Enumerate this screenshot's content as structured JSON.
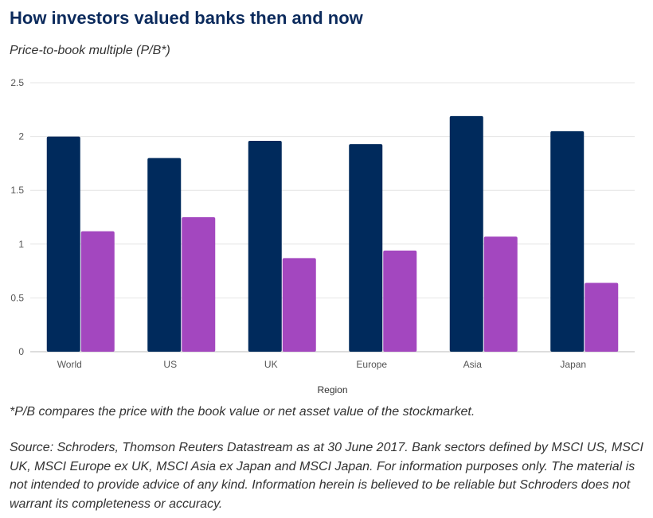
{
  "header": {
    "title": "How investors valued banks then and now",
    "subtitle": "Price-to-book multiple (P/B*)"
  },
  "chart_data": {
    "type": "bar",
    "categories": [
      "World",
      "US",
      "UK",
      "Europe",
      "Asia",
      "Japan"
    ],
    "series": [
      {
        "values": [
          2.0,
          1.8,
          1.96,
          1.93,
          2.19,
          2.05
        ],
        "color": "#002a5c"
      },
      {
        "values": [
          1.12,
          1.25,
          0.87,
          0.94,
          1.07,
          0.64
        ],
        "color": "#a347bf"
      }
    ],
    "y_ticks": [
      "0",
      "0.5",
      "1",
      "1.5",
      "2",
      "2.5"
    ],
    "ylim": [
      0,
      2.5
    ],
    "xlabel": "Region",
    "ylabel": "",
    "grid": true
  },
  "footer": {
    "footnote": "*P/B compares the price with the book value or net asset value of the stockmarket.",
    "source": "Source: Schroders, Thomson Reuters Datastream as at 30 June 2017. Bank sectors defined by MSCI US, MSCI UK, MSCI Europe ex UK, MSCI Asia ex Japan and MSCI Japan. For information purposes only. The material is not intended to provide advice of any kind. Information herein is believed to be reliable but Schroders does not warrant its completeness or accuracy."
  }
}
